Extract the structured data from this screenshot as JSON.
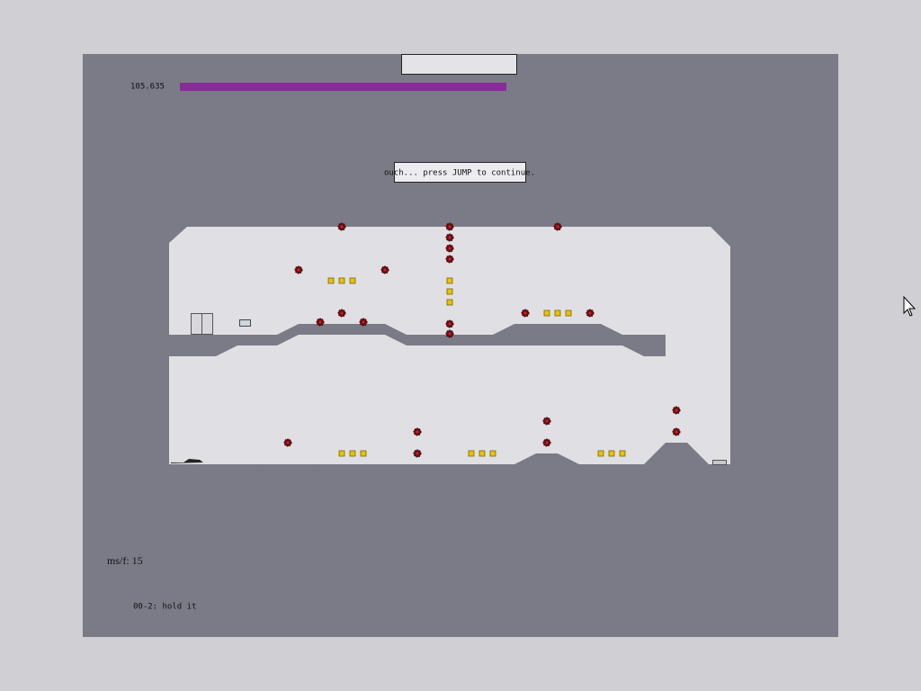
{
  "hud": {
    "time": "105.635",
    "message": "ouch... press JUMP to continue.",
    "frame_time": "ms/f: 15",
    "level_name": "00-2: hold it"
  }
}
